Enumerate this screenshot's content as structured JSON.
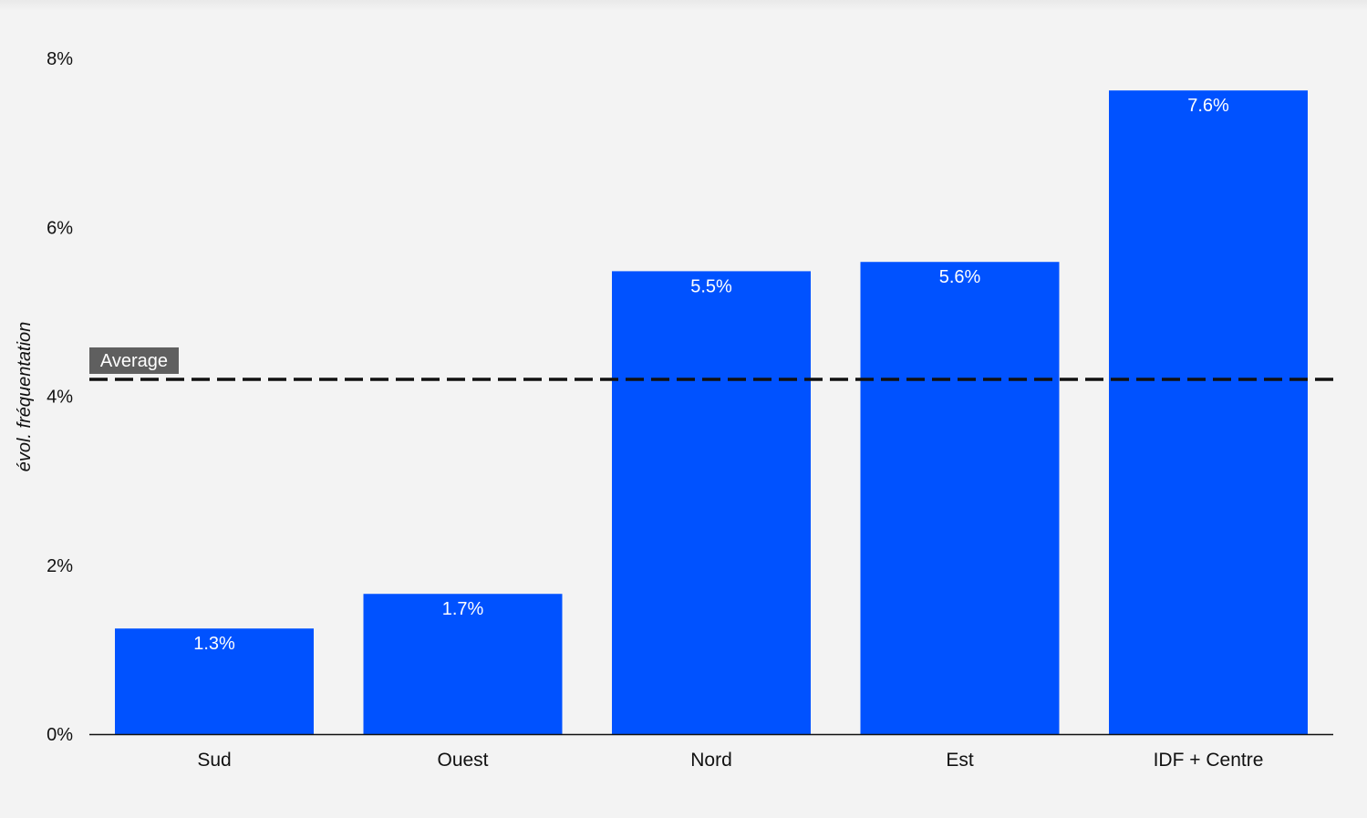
{
  "chart_data": {
    "type": "bar",
    "categories": [
      "Sud",
      "Ouest",
      "Nord",
      "Est",
      "IDF + Centre"
    ],
    "values": [
      1.25,
      1.66,
      5.48,
      5.59,
      7.62
    ],
    "data_labels": [
      "1.3%",
      "1.7%",
      "5.5%",
      "5.6%",
      "7.6%"
    ],
    "ylabel": "évol. fréquentation",
    "ylim": [
      0,
      8
    ],
    "yticks": [
      0,
      2,
      4,
      6,
      8
    ],
    "ytick_labels": [
      "0%",
      "2%",
      "4%",
      "6%",
      "8%"
    ],
    "grid": false,
    "average": {
      "value": 4.2,
      "label": "Average",
      "style": "dashed"
    },
    "colors": {
      "bar": "#0052ff",
      "background": "#f3f3f3",
      "average_line": "#111111",
      "average_badge": "#5f5f5f"
    }
  }
}
